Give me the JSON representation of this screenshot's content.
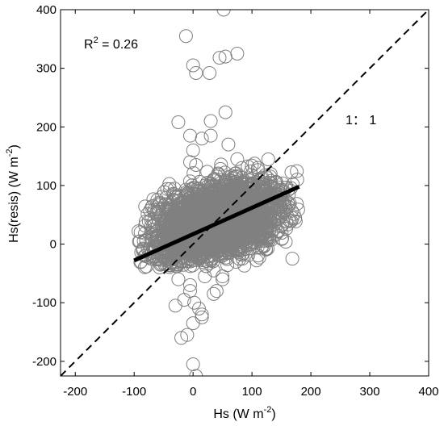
{
  "chart_data": {
    "type": "scatter",
    "xlabel": {
      "base": "Hs (W m",
      "sup": "-2",
      "end": ")"
    },
    "ylabel": {
      "base": "Hs(resis) (W m",
      "sup": "-2",
      "end": ")"
    },
    "xlim": [
      -225,
      400
    ],
    "ylim": [
      -225,
      400
    ],
    "xticks": [
      -200,
      -100,
      0,
      100,
      200,
      300,
      400
    ],
    "yticks": [
      -200,
      -100,
      0,
      100,
      200,
      300,
      400
    ],
    "grid": false,
    "marker": "open-circle",
    "marker_color": "#7f7f7f",
    "annotations": {
      "r2": {
        "base": "R",
        "sup": "2",
        "rest": " = 0.26"
      },
      "one_to_one": "1： 1"
    },
    "one_to_one_line": {
      "x": [
        -225,
        400
      ],
      "y": [
        -225,
        400
      ],
      "style": "dashed",
      "color": "#000000"
    },
    "fit_line": {
      "x": [
        -100,
        180
      ],
      "y": [
        -28,
        98
      ],
      "style": "solid",
      "color": "#000000"
    },
    "outliers": {
      "x": [
        52,
        -12,
        0,
        45,
        55,
        75,
        5,
        28,
        55,
        -25,
        -5,
        30,
        30,
        15,
        -5,
        5,
        0,
        60,
        75,
        110,
        2,
        10,
        15,
        0,
        -10,
        -20,
        0,
        5,
        15,
        -30,
        -15,
        50,
        20,
        -5,
        35,
        40,
        50,
        35,
        -25,
        -5
      ],
      "y": [
        400,
        355,
        305,
        318,
        320,
        325,
        292,
        292,
        225,
        208,
        185,
        210,
        185,
        180,
        140,
        135,
        160,
        170,
        145,
        130,
        -100,
        -110,
        -125,
        -135,
        -155,
        -160,
        -205,
        -225,
        -120,
        -105,
        -95,
        -60,
        -55,
        -70,
        -85,
        -80,
        -55,
        -45,
        -60,
        -80
      ]
    },
    "cloud": {
      "count": 2600,
      "x_range": [
        -95,
        180
      ],
      "y_range": [
        -40,
        150
      ],
      "center": [
        40,
        40
      ],
      "color": "#808080"
    }
  }
}
